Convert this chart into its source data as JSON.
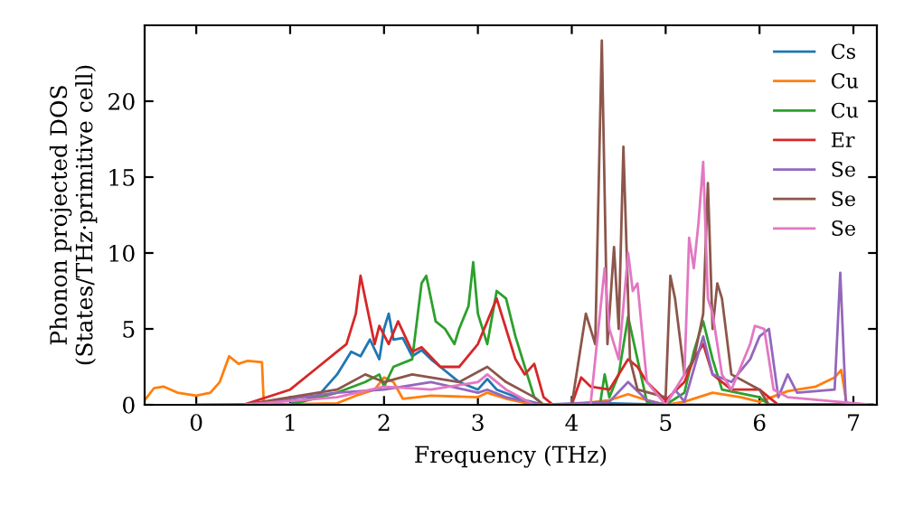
{
  "chart_data": {
    "type": "line",
    "xlabel": "Frequency (THz)",
    "ylabel": "Phonon projected DOS\n(States/THz·primitive cell)",
    "xlim": [
      -0.55,
      7.25
    ],
    "ylim": [
      0,
      25
    ],
    "xticks": [
      0,
      1,
      2,
      3,
      4,
      5,
      6,
      7
    ],
    "yticks": [
      0,
      5,
      10,
      15,
      20
    ],
    "grid": false,
    "legend": "top right",
    "marker": "none",
    "line_style": "solid",
    "series": [
      {
        "name": "Cs",
        "color": "#1f77b4",
        "x": [
          0,
          1.0,
          1.3,
          1.5,
          1.65,
          1.75,
          1.85,
          1.95,
          2.0,
          2.05,
          2.1,
          2.2,
          2.3,
          2.4,
          2.5,
          2.6,
          2.8,
          3.0,
          3.1,
          3.2,
          3.5,
          3.7,
          4.0,
          4.4,
          5.0,
          7.2
        ],
        "values": [
          0,
          0.05,
          0.6,
          2.0,
          3.5,
          3.2,
          4.3,
          3.0,
          5.0,
          6.0,
          4.3,
          4.4,
          3.2,
          3.6,
          3.0,
          2.5,
          1.5,
          1.0,
          1.7,
          1.0,
          0.3,
          0,
          0,
          0.1,
          0,
          0
        ]
      },
      {
        "name": "Cu",
        "color": "#ff7f0e",
        "x": [
          -0.55,
          -0.45,
          -0.35,
          -0.2,
          0,
          0.15,
          0.25,
          0.35,
          0.45,
          0.55,
          0.7,
          0.72,
          1.5,
          1.7,
          1.9,
          2.0,
          2.1,
          2.2,
          2.5,
          3.0,
          3.1,
          3.3,
          3.6,
          4.0,
          4.4,
          4.6,
          4.8,
          5.0,
          5.2,
          5.5,
          5.8,
          6.0,
          6.3,
          6.6,
          6.8,
          6.87,
          6.93,
          7.2
        ],
        "values": [
          0.3,
          1.1,
          1.2,
          0.8,
          0.6,
          0.8,
          1.5,
          3.2,
          2.7,
          2.9,
          2.8,
          0,
          0.1,
          0.6,
          1.0,
          1.8,
          1.5,
          0.4,
          0.6,
          0.5,
          0.8,
          0.4,
          0,
          0,
          0.3,
          0.7,
          0.3,
          0,
          0.2,
          0.8,
          0.5,
          0.2,
          0.9,
          1.2,
          1.8,
          2.3,
          0,
          0
        ]
      },
      {
        "name": "Cu",
        "color": "#2ca02c",
        "x": [
          1.0,
          1.5,
          1.8,
          1.95,
          2.0,
          2.1,
          2.3,
          2.4,
          2.45,
          2.55,
          2.65,
          2.75,
          2.8,
          2.9,
          2.95,
          3.0,
          3.1,
          3.2,
          3.3,
          3.4,
          3.5,
          3.6,
          3.7,
          4.3,
          4.35,
          4.4,
          4.5,
          4.6,
          4.7,
          4.8,
          5.0,
          5.2,
          5.3,
          5.4,
          5.5,
          5.6,
          6.0,
          6.1,
          7.2
        ],
        "values": [
          0,
          0.8,
          1.5,
          2.0,
          1.2,
          2.5,
          3.0,
          8.0,
          8.5,
          5.5,
          5.0,
          4.0,
          5.0,
          6.5,
          9.4,
          6.0,
          4.0,
          7.5,
          7.0,
          4.5,
          2.5,
          0.5,
          0,
          0,
          2.0,
          0.5,
          2.0,
          5.8,
          3.0,
          0.2,
          0,
          0.8,
          3.5,
          5.5,
          3.0,
          1.0,
          0.5,
          0,
          0
        ]
      },
      {
        "name": "Er",
        "color": "#d62728",
        "x": [
          0.5,
          1.0,
          1.3,
          1.5,
          1.6,
          1.7,
          1.75,
          1.8,
          1.9,
          1.95,
          2.05,
          2.15,
          2.3,
          2.4,
          2.6,
          2.8,
          3.0,
          3.1,
          3.2,
          3.3,
          3.4,
          3.5,
          3.6,
          3.7,
          3.8,
          4.0,
          4.1,
          4.2,
          4.4,
          4.6,
          4.7,
          4.8,
          5.0,
          5.2,
          5.3,
          5.4,
          5.5,
          5.7,
          6.0,
          6.1,
          6.2,
          7.2
        ],
        "values": [
          0,
          1.0,
          2.5,
          3.5,
          4.0,
          6.0,
          8.5,
          7.0,
          4.0,
          5.2,
          4.0,
          5.5,
          3.5,
          3.8,
          2.5,
          2.5,
          4.0,
          5.5,
          7.0,
          5.0,
          3.0,
          2.0,
          2.7,
          0.5,
          0,
          0,
          1.8,
          1.2,
          1.0,
          3.0,
          2.5,
          1.5,
          0.3,
          1.5,
          3.0,
          4.0,
          2.0,
          1.0,
          1.0,
          0.5,
          0,
          0
        ]
      },
      {
        "name": "Se",
        "color": "#9467bd",
        "x": [
          0.5,
          1.5,
          2.0,
          2.5,
          3.0,
          3.1,
          3.3,
          3.7,
          4.4,
          4.6,
          4.8,
          5.0,
          5.1,
          5.2,
          5.4,
          5.5,
          5.7,
          5.9,
          6.0,
          6.1,
          6.2,
          6.3,
          6.4,
          6.8,
          6.86,
          6.92,
          7.2
        ],
        "values": [
          0,
          0.8,
          1.0,
          1.5,
          0.8,
          1.0,
          0.5,
          0,
          0.2,
          1.5,
          0.3,
          0,
          1.0,
          0.2,
          4.5,
          2.0,
          1.5,
          3.0,
          4.5,
          5.0,
          0.5,
          2.0,
          0.8,
          1.0,
          8.7,
          0,
          0
        ]
      },
      {
        "name": "Se",
        "color": "#8c564b",
        "x": [
          0.5,
          1.5,
          1.8,
          2.0,
          2.3,
          2.8,
          3.1,
          3.3,
          3.6,
          3.7,
          4.0,
          4.1,
          4.15,
          4.25,
          4.32,
          4.38,
          4.45,
          4.5,
          4.55,
          4.62,
          4.7,
          5.0,
          5.05,
          5.1,
          5.2,
          5.3,
          5.4,
          5.45,
          5.5,
          5.55,
          5.6,
          5.7,
          6.0,
          6.1,
          7.2
        ],
        "values": [
          0,
          1.0,
          2.0,
          1.5,
          2.0,
          1.5,
          2.5,
          1.5,
          0.5,
          0,
          0,
          4.0,
          6.0,
          4.0,
          24.0,
          4.0,
          10.4,
          5.0,
          17.0,
          3.0,
          1.0,
          0.5,
          8.5,
          7.0,
          2.0,
          3.0,
          6.0,
          14.6,
          5.0,
          8.0,
          7.0,
          2.0,
          1.0,
          0,
          0
        ]
      },
      {
        "name": "Se",
        "color": "#e377c2",
        "x": [
          0.5,
          1.5,
          2.0,
          2.5,
          3.0,
          3.1,
          3.3,
          3.6,
          4.2,
          4.35,
          4.4,
          4.5,
          4.6,
          4.65,
          4.7,
          4.8,
          5.0,
          5.1,
          5.2,
          5.25,
          5.3,
          5.35,
          5.4,
          5.45,
          5.5,
          5.6,
          5.7,
          5.9,
          5.95,
          6.05,
          6.15,
          6.3,
          7.2
        ],
        "values": [
          0,
          0.5,
          1.2,
          1.0,
          1.5,
          2.0,
          1.0,
          0,
          0,
          9.0,
          5.0,
          3.0,
          10.0,
          7.5,
          8.0,
          1.5,
          0,
          1.0,
          2.0,
          11.0,
          9.0,
          12.0,
          16.0,
          7.0,
          6.0,
          2.0,
          1.0,
          4.0,
          5.2,
          5.0,
          1.0,
          0.5,
          0
        ]
      }
    ]
  }
}
